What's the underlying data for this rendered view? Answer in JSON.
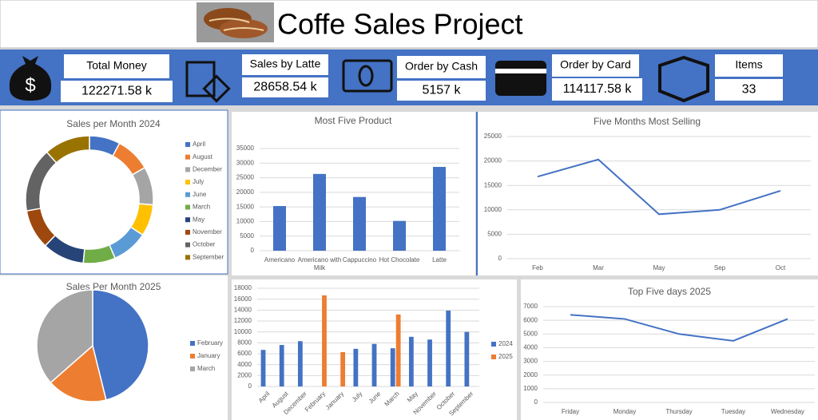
{
  "header": {
    "title": "Coffe Sales Project"
  },
  "kpis": [
    {
      "label": "Total Money",
      "value": "122271.58 k"
    },
    {
      "label": "Sales by Latte",
      "value": "28658.54 k"
    },
    {
      "label": "Order by Cash",
      "value": "5157 k"
    },
    {
      "label": "Order by Card",
      "value": "114117.58 k"
    },
    {
      "label": "Items",
      "value": "33"
    }
  ],
  "chart_data": [
    {
      "type": "donut",
      "title": "Sales per Month 2024",
      "categories": [
        "April",
        "August",
        "December",
        "July",
        "June",
        "March",
        "May",
        "November",
        "October",
        "September"
      ],
      "values": [
        6700,
        7600,
        8300,
        6900,
        7800,
        7000,
        9100,
        8600,
        13900,
        10000
      ],
      "colors": [
        "#4472c4",
        "#ed7d31",
        "#a5a5a5",
        "#ffc000",
        "#5b9bd5",
        "#70ad47",
        "#264478",
        "#9e480e",
        "#636363",
        "#997300"
      ],
      "legend": "right"
    },
    {
      "type": "bar",
      "title": "Most Five Product",
      "categories": [
        "Americano",
        "Americano with Milk",
        "Cappuccino",
        "Hot Chocolate",
        "Latte"
      ],
      "values": [
        15300,
        26300,
        18400,
        10200,
        28700
      ],
      "color": "#4472c4",
      "ylim": [
        0,
        35000
      ],
      "yticks": [
        0,
        5000,
        10000,
        15000,
        20000,
        25000,
        30000,
        35000
      ],
      "grid": true
    },
    {
      "type": "line",
      "title": "Five Months Most Selling",
      "categories": [
        "Feb",
        "Mar",
        "May",
        "Sep",
        "Oct"
      ],
      "values": [
        16800,
        20300,
        9100,
        10000,
        13900
      ],
      "color": "#4472c4",
      "ylim": [
        0,
        25000
      ],
      "yticks": [
        0,
        5000,
        10000,
        15000,
        20000,
        25000
      ],
      "grid": true
    },
    {
      "type": "pie",
      "title": "Sales Per Month 2025",
      "categories": [
        "February",
        "January",
        "March"
      ],
      "values": [
        16700,
        6300,
        13200
      ],
      "colors": [
        "#4472c4",
        "#ed7d31",
        "#a5a5a5"
      ],
      "legend": "right"
    },
    {
      "type": "grouped-bar",
      "categories": [
        "April",
        "August",
        "December",
        "February",
        "January",
        "July",
        "June",
        "March",
        "May",
        "November",
        "October",
        "September"
      ],
      "series": [
        {
          "name": "2024",
          "color": "#4472c4",
          "values": [
            6700,
            7600,
            8300,
            null,
            null,
            6900,
            7800,
            7000,
            9100,
            8600,
            13900,
            10000
          ]
        },
        {
          "name": "2025",
          "color": "#ed7d31",
          "values": [
            null,
            null,
            null,
            16700,
            6300,
            null,
            null,
            13200,
            null,
            null,
            null,
            null
          ]
        }
      ],
      "ylim": [
        0,
        18000
      ],
      "yticks": [
        0,
        2000,
        4000,
        6000,
        8000,
        10000,
        12000,
        14000,
        16000,
        18000
      ],
      "grid": true,
      "legend": "right"
    },
    {
      "type": "line",
      "title": "Top Five days 2025",
      "categories": [
        "Friday",
        "Monday",
        "Thursday",
        "Tuesday",
        "Wednesday"
      ],
      "values": [
        6400,
        6100,
        5000,
        4500,
        6100
      ],
      "color": "#4472c4",
      "ylim": [
        0,
        7000
      ],
      "yticks": [
        0,
        1000,
        2000,
        3000,
        4000,
        5000,
        6000,
        7000
      ],
      "grid": true
    }
  ]
}
